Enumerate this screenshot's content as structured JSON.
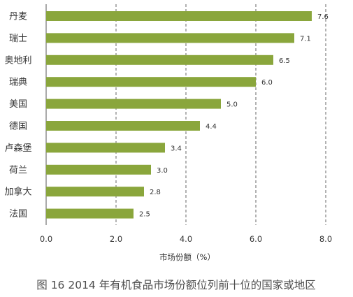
{
  "chart_data": {
    "type": "bar",
    "orientation": "horizontal",
    "categories": [
      "丹麦",
      "瑞士",
      "奥地利",
      "瑞典",
      "美国",
      "德国",
      "卢森堡",
      "荷兰",
      "加拿大",
      "法国"
    ],
    "values": [
      7.6,
      7.1,
      6.5,
      6.0,
      5.0,
      4.4,
      3.4,
      3.0,
      2.8,
      2.5
    ],
    "value_labels": [
      "7.6",
      "7.1",
      "6.5",
      "6.0",
      "5.0",
      "4.4",
      "3.4",
      "3.0",
      "2.8",
      "2.5"
    ],
    "xlim": [
      0,
      8
    ],
    "x_ticks": [
      0,
      2,
      4,
      6,
      8
    ],
    "x_tick_labels": [
      "0.0",
      "2.0",
      "4.0",
      "6.0",
      "8.0"
    ],
    "xlabel": "市场份额（%）",
    "ylabel": "",
    "caption": "图 16  2014 年有机食品市场份额位列前十位的国家或地区",
    "grid": "vertical dashed",
    "bar_color": "#8aa63c",
    "grid_color": "#666666"
  }
}
